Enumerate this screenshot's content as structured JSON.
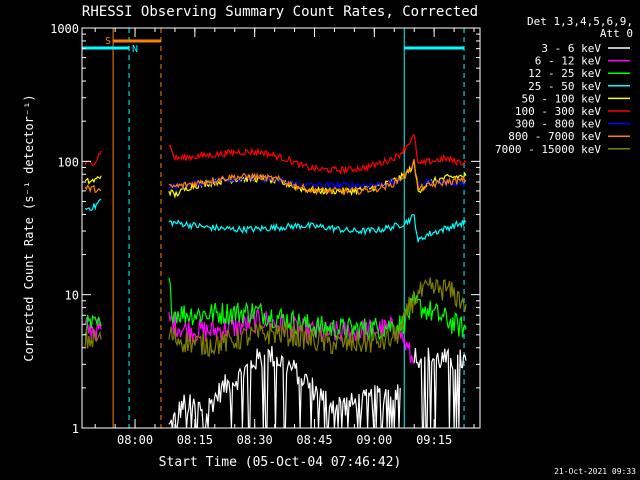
{
  "chart_data": {
    "type": "line",
    "title": "RHESSI Observing Summary Count Rates, Corrected",
    "xlabel": "Start Time (05-Oct-04 07:46:42)",
    "ylabel": "Corrected Count Rate (s⁻¹ detector⁻¹)",
    "yscale": "log",
    "ylim": [
      1,
      1000
    ],
    "y_ticks": [
      {
        "value": 1,
        "label": "1"
      },
      {
        "value": 10,
        "label": "10"
      },
      {
        "value": 100,
        "label": "100"
      },
      {
        "value": 1000,
        "label": "1000"
      }
    ],
    "x_ticks": [
      "08:00",
      "08:15",
      "08:30",
      "08:45",
      "09:00",
      "09:15"
    ],
    "x_tick_minutes": [
      0,
      15,
      30,
      45,
      60,
      75
    ],
    "xlim_minutes": [
      -13.3,
      86.5
    ],
    "legend_header": [
      "Det 1,3,4,5,6,9,",
      "Att 0"
    ],
    "legend_position": "right",
    "footer": "21-Oct-2021 09:33",
    "flag_labels": {
      "saa": "S",
      "night": "N"
    },
    "flags": {
      "saa_bar": [
        -5.5,
        6.5
      ],
      "night_bars": [
        [
          -13.3,
          -1.5
        ],
        [
          67.5,
          82.5
        ]
      ],
      "cyan_dashed_lines": [
        -1.5,
        82.5
      ],
      "cyan_solid_lines": [
        67.5
      ],
      "orange_solid_lines": [
        -5.5
      ],
      "orange_dashed_lines": [
        6.5
      ]
    },
    "series": [
      {
        "name": "3 - 6 keV",
        "color": "#ffffff",
        "segments": [
          {
            "x": [
              8.5,
              12,
              18,
              22,
              26,
              30,
              34,
              38,
              42,
              46,
              50,
              54,
              58,
              62,
              66.5
            ],
            "y": [
              1,
              1.5,
              1.4,
              2.0,
              2.4,
              3.2,
              3.5,
              3.0,
              2.4,
              1.8,
              1.5,
              1.5,
              1.6,
              1.8,
              2.0
            ]
          },
          {
            "x": [
              70,
              75,
              80,
              83
            ],
            "y": [
              3.5,
              3.3,
              3.2,
              3.2
            ]
          }
        ]
      },
      {
        "name": "6 - 12 keV",
        "color": "#ff00ff",
        "segments": [
          {
            "x": [
              -12.5,
              -8.5
            ],
            "y": [
              5.5,
              5.5
            ]
          },
          {
            "x": [
              8.5,
              12,
              18,
              24,
              28,
              32,
              36,
              40,
              46,
              52,
              58,
              62,
              66,
              70
            ],
            "y": [
              6.5,
              5.5,
              5.3,
              5.6,
              6.0,
              6.5,
              6.0,
              5.5,
              5.2,
              5.2,
              5.4,
              5.5,
              5.6,
              3.0
            ]
          }
        ]
      },
      {
        "name": "12 - 25 keV",
        "color": "#00ff00",
        "segments": [
          {
            "x": [
              -12.5,
              -8.5
            ],
            "y": [
              5.8,
              5.8
            ]
          },
          {
            "x": [
              8.5,
              9.5,
              12,
              18,
              24,
              30,
              36,
              42,
              48,
              54,
              60,
              64,
              67,
              70,
              74,
              78,
              80,
              83
            ],
            "y": [
              12,
              7.5,
              7.2,
              7.2,
              7.3,
              7.5,
              6.8,
              6.0,
              5.6,
              5.5,
              5.6,
              5.8,
              6.0,
              8.5,
              7.5,
              6.5,
              6.0,
              5.5
            ]
          }
        ]
      },
      {
        "name": "25 - 50 keV",
        "color": "#00ffff",
        "segments": [
          {
            "x": [
              -12.5,
              -10,
              -8.5
            ],
            "y": [
              44,
              46,
              52
            ]
          },
          {
            "x": [
              8.5,
              12,
              18,
              24,
              30,
              36,
              42,
              48,
              54,
              58,
              62,
              66,
              68,
              70,
              71,
              73,
              76,
              80,
              83
            ],
            "y": [
              35,
              34,
              32,
              31,
              31,
              32,
              33,
              32,
              30,
              30,
              31,
              33,
              35,
              39,
              25,
              28,
              30,
              33,
              35
            ]
          }
        ]
      },
      {
        "name": "50 - 100 keV",
        "color": "#ffff00",
        "segments": [
          {
            "x": [
              -12.5,
              -10,
              -8.5
            ],
            "y": [
              70,
              72,
              78
            ]
          },
          {
            "x": [
              8.5,
              10,
              14,
              20,
              26,
              32,
              38,
              42,
              46,
              50,
              54,
              58,
              62,
              66,
              68,
              70,
              71,
              74,
              78,
              83
            ],
            "y": [
              60,
              56,
              65,
              70,
              74,
              74,
              68,
              62,
              60,
              60,
              60,
              62,
              66,
              74,
              80,
              95,
              60,
              70,
              75,
              78
            ]
          }
        ]
      },
      {
        "name": "100 - 300 keV",
        "color": "#ff0000",
        "segments": [
          {
            "x": [
              -12.5,
              -10,
              -8.5
            ],
            "y": [
              95,
              100,
              120
            ]
          },
          {
            "x": [
              8.5,
              10,
              14,
              20,
              26,
              32,
              38,
              42,
              46,
              50,
              54,
              58,
              62,
              66,
              68,
              70,
              71,
              74,
              78,
              80,
              83
            ],
            "y": [
              135,
              105,
              108,
              112,
              118,
              117,
              104,
              92,
              87,
              86,
              87,
              90,
              98,
              110,
              130,
              155,
              95,
              100,
              105,
              100,
              98
            ]
          }
        ]
      },
      {
        "name": "300 - 800 keV",
        "color": "#0000ff",
        "segments": [
          {
            "x": [
              8.5,
              12,
              18,
              24,
              30,
              36,
              40,
              44,
              48,
              52,
              56,
              60,
              64,
              66.5
            ],
            "y": [
              64,
              66,
              70,
              74,
              75,
              72,
              68,
              66,
              66,
              66,
              66,
              67,
              69,
              70
            ]
          },
          {
            "x": [
              71,
              74,
              78,
              83
            ],
            "y": [
              68,
              70,
              70,
              68
            ]
          }
        ]
      },
      {
        "name": "800 - 7000 keV",
        "color": "#ff8000",
        "segments": [
          {
            "x": [
              -12.5,
              -10,
              -8.5
            ],
            "y": [
              63,
              62,
              60
            ]
          },
          {
            "x": [
              8.5,
              12,
              18,
              24,
              30,
              36,
              40,
              44,
              48,
              52,
              56,
              60,
              64,
              66,
              68,
              70,
              71,
              74,
              78,
              83
            ],
            "y": [
              64,
              66,
              71,
              76,
              77,
              73,
              66,
              61,
              60,
              60,
              60,
              62,
              66,
              72,
              80,
              100,
              62,
              66,
              70,
              72
            ]
          }
        ]
      },
      {
        "name": "7000 - 15000 keV",
        "color": "#808000",
        "segments": [
          {
            "x": [
              -12.5,
              -8.5
            ],
            "y": [
              4.6,
              4.6
            ]
          },
          {
            "x": [
              8.5,
              12,
              18,
              24,
              30,
              36,
              42,
              48,
              54,
              60,
              64,
              67,
              69,
              71,
              74,
              78,
              80,
              83
            ],
            "y": [
              5.0,
              4.5,
              4.2,
              4.5,
              5.0,
              5.2,
              4.8,
              4.3,
              4.3,
              4.4,
              4.6,
              5.5,
              8.5,
              10.0,
              11.0,
              11.0,
              10.0,
              8.5
            ]
          }
        ]
      }
    ]
  }
}
